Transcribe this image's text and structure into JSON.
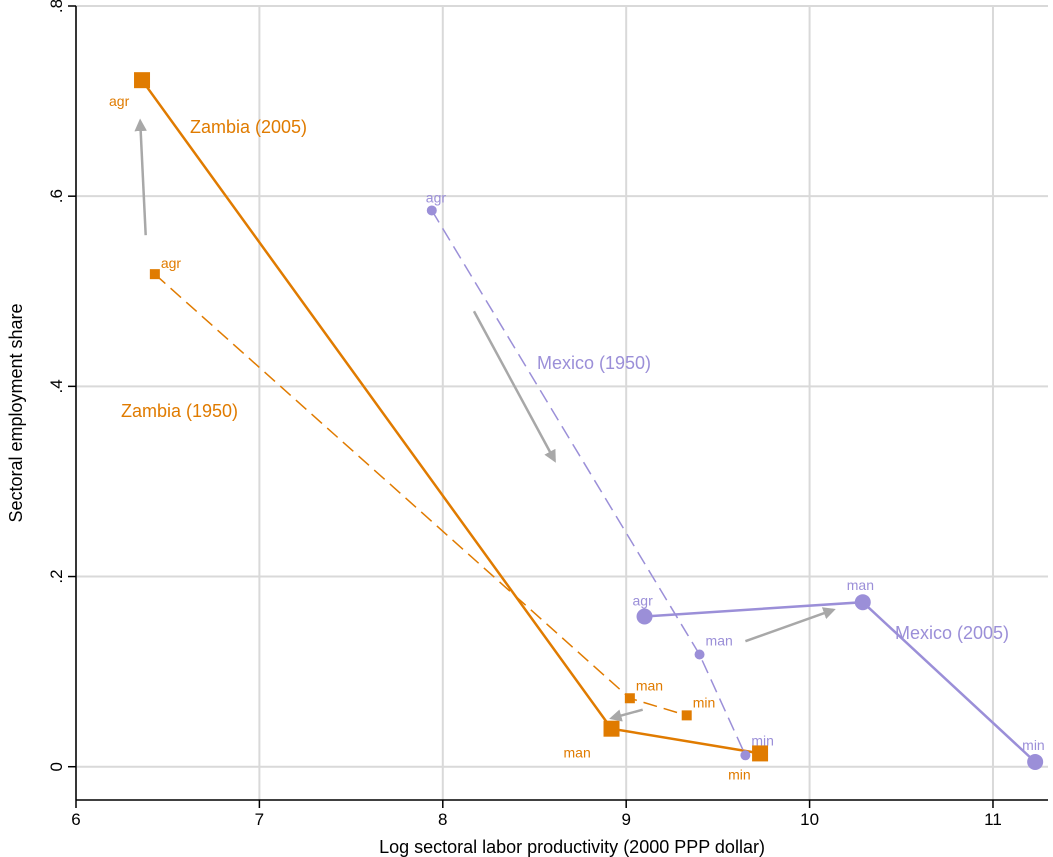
{
  "chart_data": {
    "type": "scatter",
    "xlabel": "Log sectoral labor productivity (2000 PPP dollar)",
    "ylabel": "Sectoral employment share",
    "xlim": [
      6,
      11.3
    ],
    "ylim": [
      -0.035,
      0.8
    ],
    "xticks": [
      6,
      7,
      8,
      9,
      10,
      11
    ],
    "xtick_labels": [
      "6",
      "7",
      "8",
      "9",
      "10",
      "11"
    ],
    "yticks": [
      0,
      0.2,
      0.4,
      0.6,
      0.8
    ],
    "ytick_labels": [
      "0",
      ".2",
      ".4",
      ".6",
      ".8"
    ],
    "grid": true,
    "colors": {
      "zambia": "#e07b00",
      "mexico": "#9b8fd8",
      "arrow": "#a8a8a8",
      "grid": "#d9d9d9"
    },
    "series": [
      {
        "id": "zambia-2005",
        "name": "Zambia (2005)",
        "color": "#e07b00",
        "line": "solid",
        "marker": "square",
        "size": "large",
        "points": [
          {
            "label": "agr",
            "x": 6.36,
            "y": 0.722
          },
          {
            "label": "man",
            "x": 8.92,
            "y": 0.04
          },
          {
            "label": "min",
            "x": 9.73,
            "y": 0.014
          }
        ]
      },
      {
        "id": "zambia-1950",
        "name": "Zambia (1950)",
        "color": "#e07b00",
        "line": "dashed",
        "marker": "square",
        "size": "small",
        "points": [
          {
            "label": "agr",
            "x": 6.43,
            "y": 0.518
          },
          {
            "label": "man",
            "x": 9.02,
            "y": 0.072
          },
          {
            "label": "min",
            "x": 9.33,
            "y": 0.054
          }
        ]
      },
      {
        "id": "mexico-1950",
        "name": "Mexico (1950)",
        "color": "#9b8fd8",
        "line": "dashed",
        "marker": "circle",
        "size": "small",
        "points": [
          {
            "label": "agr",
            "x": 7.94,
            "y": 0.585
          },
          {
            "label": "man",
            "x": 9.4,
            "y": 0.118
          },
          {
            "label": "min",
            "x": 9.65,
            "y": 0.012
          }
        ]
      },
      {
        "id": "mexico-2005",
        "name": "Mexico (2005)",
        "color": "#9b8fd8",
        "line": "solid",
        "marker": "circle",
        "size": "large",
        "points": [
          {
            "label": "agr",
            "x": 9.1,
            "y": 0.158
          },
          {
            "label": "man",
            "x": 10.29,
            "y": 0.173
          },
          {
            "label": "min",
            "x": 11.23,
            "y": 0.005
          }
        ]
      }
    ],
    "arrows": [
      {
        "from": [
          6.38,
          0.559
        ],
        "to": [
          6.35,
          0.679
        ]
      },
      {
        "from": [
          8.17,
          0.479
        ],
        "to": [
          8.61,
          0.322
        ]
      },
      {
        "from": [
          9.09,
          0.06
        ],
        "to": [
          8.92,
          0.051
        ]
      },
      {
        "from": [
          9.65,
          0.132
        ],
        "to": [
          10.13,
          0.165
        ]
      }
    ]
  }
}
